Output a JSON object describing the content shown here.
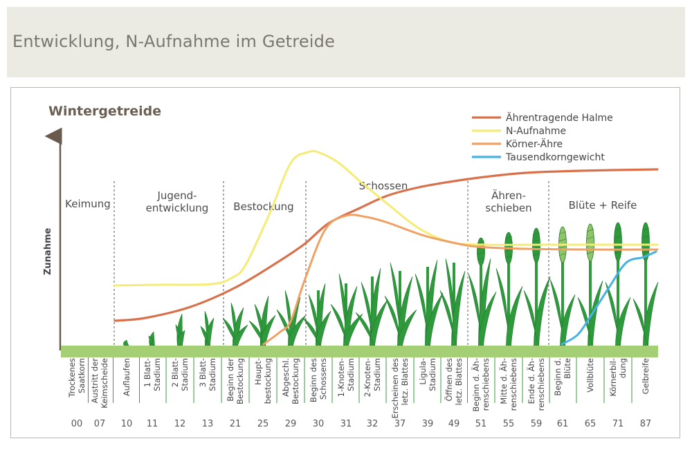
{
  "header": {
    "title": "Entwicklung, N-Aufnahme im Getreide"
  },
  "chart": {
    "title": "Wintergetreide",
    "ylabel": "Zunahme",
    "colors": {
      "halme": "#d9704a",
      "n": "#f4ec74",
      "koerner": "#f0a062",
      "tkg": "#45b2e2",
      "ground": "#a5cf74",
      "plant": "#2f9a3c",
      "axis": "#6a5a4e"
    },
    "phases": [
      {
        "lines": [
          "Keimung"
        ]
      },
      {
        "lines": [
          "Jugend-",
          "entwicklung"
        ]
      },
      {
        "lines": [
          "Bestockung"
        ]
      },
      {
        "lines": [
          "Schossen"
        ]
      },
      {
        "lines": [
          "Ähren-",
          "schieben"
        ]
      },
      {
        "lines": [
          "Blüte + Reife"
        ]
      }
    ],
    "stages": [
      {
        "lines": [
          "Trockenes",
          "Saatkorn"
        ],
        "code": "00"
      },
      {
        "lines": [
          "Austritt der",
          "Keimscheide"
        ],
        "code": "07"
      },
      {
        "lines": [
          "Auflaufen"
        ],
        "code": "10"
      },
      {
        "lines": [
          "1 Blatt-",
          "Stadium"
        ],
        "code": "11"
      },
      {
        "lines": [
          "2 Blatt-",
          "Stadium"
        ],
        "code": "12"
      },
      {
        "lines": [
          "3 Blatt-",
          "Stadium"
        ],
        "code": "13"
      },
      {
        "lines": [
          "Beginn der",
          "Bestockung"
        ],
        "code": "21"
      },
      {
        "lines": [
          "Haupt-",
          "bestockung"
        ],
        "code": "25"
      },
      {
        "lines": [
          "Abgeschl.",
          "Bestockung"
        ],
        "code": "29"
      },
      {
        "lines": [
          "Beginn des",
          "Schossens"
        ],
        "code": "30"
      },
      {
        "lines": [
          "1-Knoten-",
          "Stadium"
        ],
        "code": "31"
      },
      {
        "lines": [
          "2-Knoten-",
          "Stadium"
        ],
        "code": "32"
      },
      {
        "lines": [
          "Erscheinen des",
          "letz. Blattes"
        ],
        "code": "37"
      },
      {
        "lines": [
          "Ligula-",
          "Stadium"
        ],
        "code": "39"
      },
      {
        "lines": [
          "Öffnen des",
          "letz. Blattes"
        ],
        "code": "49"
      },
      {
        "lines": [
          "Beginn d. Äh-",
          "renschiebens"
        ],
        "code": "51"
      },
      {
        "lines": [
          "Mitte d. Äh-",
          "renschiebens"
        ],
        "code": "55"
      },
      {
        "lines": [
          "Ende d. Äh-",
          "renschiebens"
        ],
        "code": "59"
      },
      {
        "lines": [
          "Beginn d.",
          "Blüte"
        ],
        "code": "61"
      },
      {
        "lines": [
          "Vollblüte"
        ],
        "code": "65"
      },
      {
        "lines": [
          "Körnerbil-",
          "dung"
        ],
        "code": "71"
      },
      {
        "lines": [
          "Gelbreife"
        ],
        "code": "87"
      }
    ],
    "series": [
      {
        "key": "halme",
        "name": "Ährentragende Halme",
        "color": "#d9704a"
      },
      {
        "key": "n",
        "name": "N-Aufnahme",
        "color": "#f4ec74"
      },
      {
        "key": "koerner",
        "name": "Körner-Ähre",
        "color": "#f0a062"
      },
      {
        "key": "tkg",
        "name": "Tausendkorngewicht",
        "color": "#45b2e2"
      }
    ]
  }
}
